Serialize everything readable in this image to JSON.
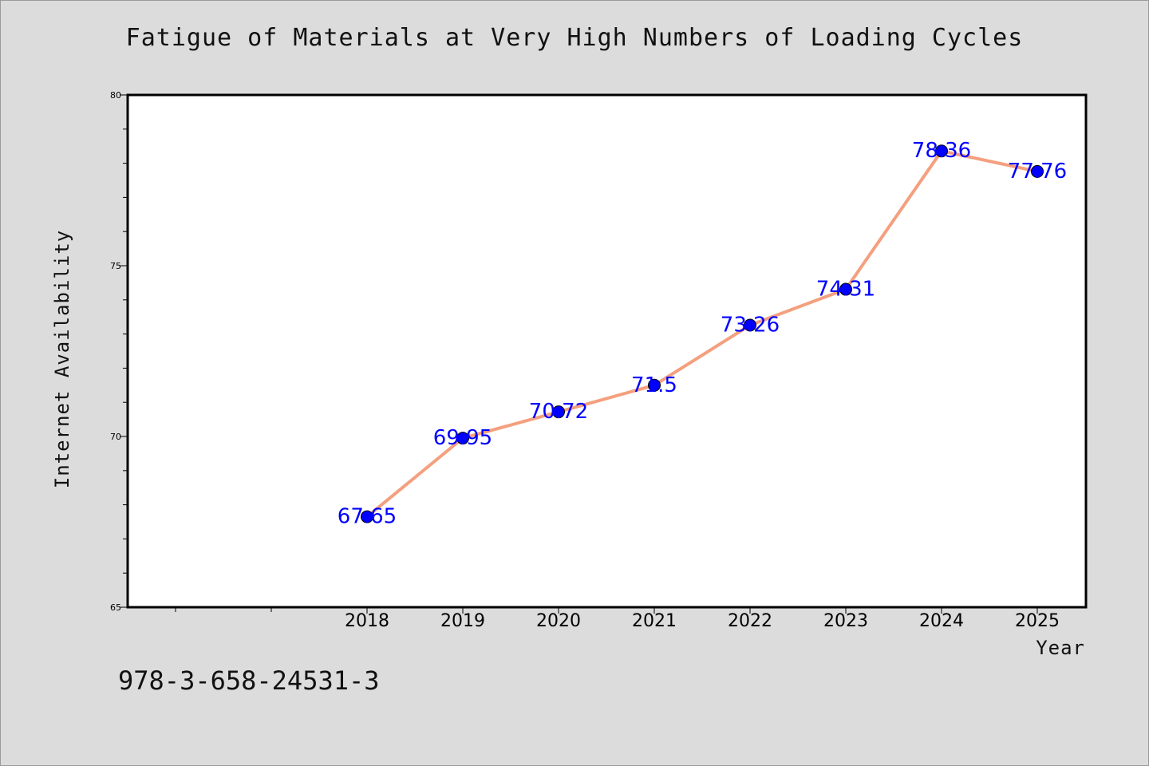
{
  "chart_data": {
    "type": "line",
    "title": "Fatigue of Materials at Very High Numbers of Loading Cycles",
    "xlabel": "Year",
    "ylabel": "Internet Availability",
    "categories": [
      "2018",
      "2019",
      "2020",
      "2021",
      "2022",
      "2023",
      "2024",
      "2025"
    ],
    "values": [
      67.65,
      69.95,
      70.72,
      71.5,
      73.26,
      74.31,
      78.36,
      77.76
    ],
    "data_labels": [
      "67.65",
      "69.95",
      "70.72",
      "71.5",
      "73.26",
      "74.31",
      "78.36",
      "77.76"
    ],
    "ylim": [
      65,
      80
    ],
    "yticks": [
      "65",
      "70",
      "75",
      "80"
    ],
    "grid": false,
    "line_color": "#f4a07f",
    "marker_color": "#0000ff",
    "label_color": "#0000ff"
  },
  "footer": {
    "isbn": "978-3-658-24531-3"
  }
}
